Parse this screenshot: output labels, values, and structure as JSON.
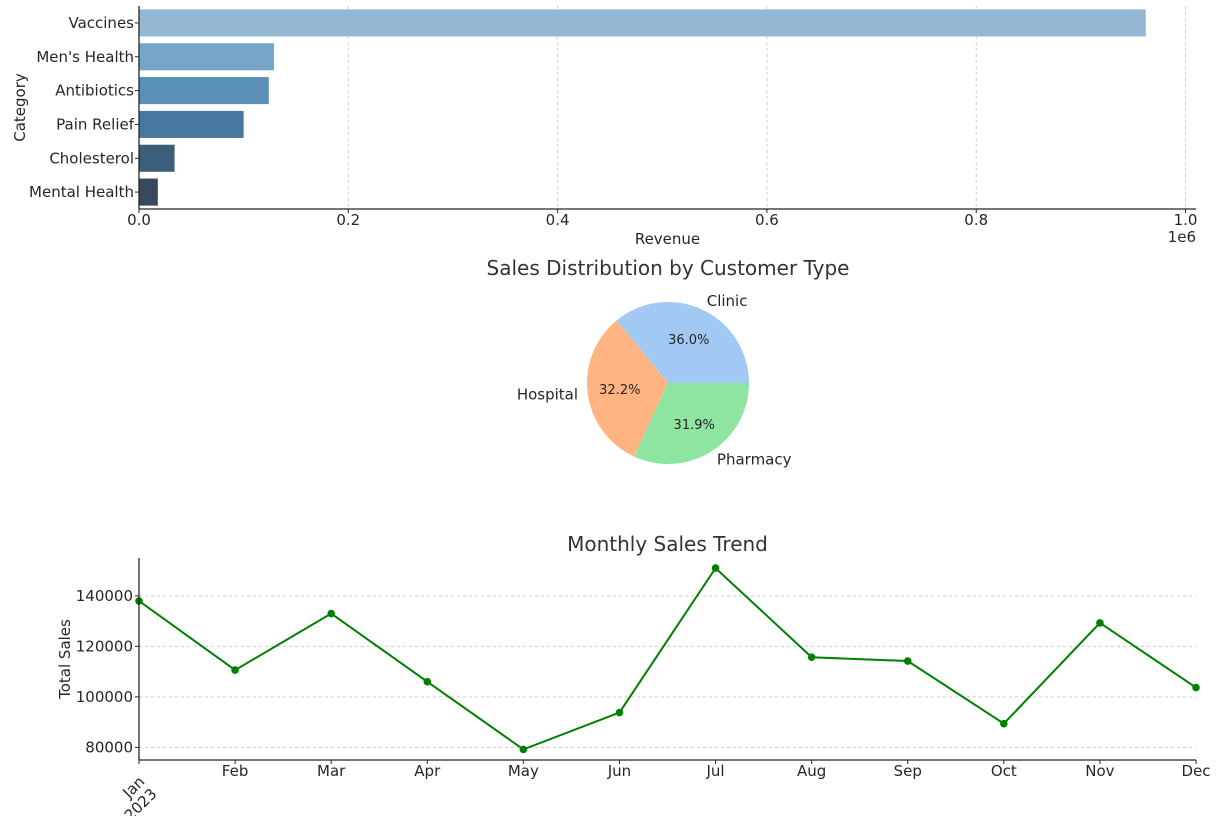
{
  "chart_data": [
    {
      "type": "bar",
      "orientation": "horizontal",
      "categories": [
        "Vaccines",
        "Men's Health",
        "Antibiotics",
        "Pain Relief",
        "Cholesterol",
        "Mental Health"
      ],
      "values": [
        962000,
        129000,
        124000,
        100000,
        34000,
        18000
      ],
      "colors": [
        "#94b8d3",
        "#75a5c8",
        "#5a8fb8",
        "#4677a0",
        "#3b5e7b",
        "#374a5c"
      ],
      "xlabel": "Revenue",
      "ylabel": "Category",
      "xlim": [
        0,
        1010000
      ],
      "x_ticks": [
        "0.0",
        "0.2",
        "0.4",
        "0.6",
        "0.8",
        "1.0"
      ],
      "x_tick_values": [
        0,
        200000,
        400000,
        600000,
        800000,
        1000000
      ],
      "offset_label": "1e6",
      "grid": "x"
    },
    {
      "type": "pie",
      "title": "Sales Distribution by Customer Type",
      "labels": [
        "Clinic",
        "Hospital",
        "Pharmacy"
      ],
      "values": [
        36.0,
        32.2,
        31.9
      ],
      "pct_labels": [
        "36.0%",
        "32.2%",
        "31.9%"
      ],
      "colors": [
        "#a1c9f4",
        "#ffb482",
        "#8de5a1"
      ]
    },
    {
      "type": "line",
      "title": "Monthly Sales Trend",
      "ylabel": "Total Sales",
      "x": [
        "Jan",
        "Feb",
        "Mar",
        "Apr",
        "May",
        "Jun",
        "Jul",
        "Aug",
        "Sep",
        "Oct",
        "Nov",
        "Dec"
      ],
      "x_ticks": [
        "Jan\n2023",
        "Feb",
        "Mar",
        "Apr",
        "May",
        "Jun",
        "Jul",
        "Aug",
        "Sep",
        "Oct",
        "Nov",
        "Dec"
      ],
      "values": [
        138000,
        110600,
        133000,
        106000,
        79200,
        93800,
        151000,
        115700,
        114200,
        89400,
        129300,
        103700
      ],
      "ylim": [
        75000,
        155000
      ],
      "y_ticks": [
        "80000",
        "100000",
        "120000",
        "140000"
      ],
      "y_tick_values": [
        80000,
        100000,
        120000,
        140000
      ],
      "color": "#008000",
      "grid": "y"
    }
  ]
}
